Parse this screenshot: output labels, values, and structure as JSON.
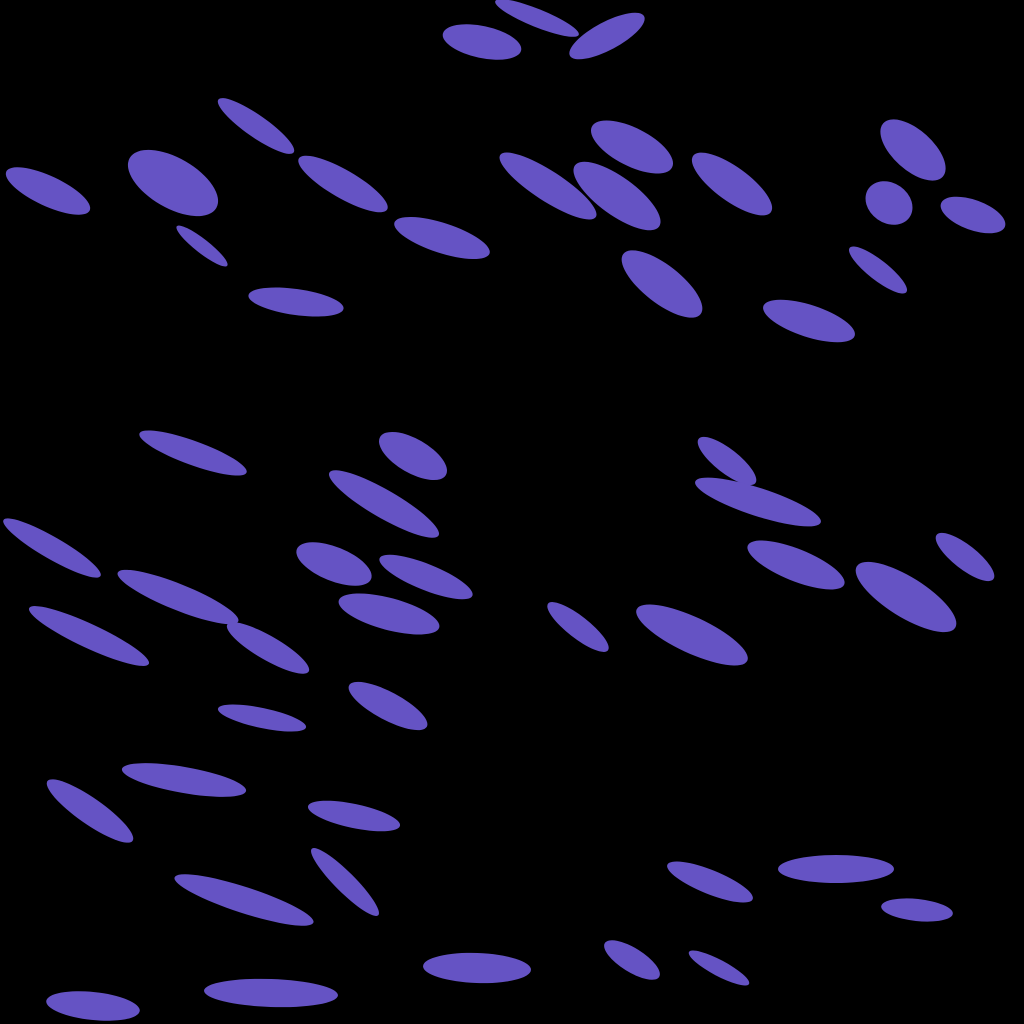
{
  "scene": {
    "background_color": "#000000",
    "mark_color": "#6553c4",
    "mark_shape": "elongated-blob",
    "mark_count": 57
  }
}
